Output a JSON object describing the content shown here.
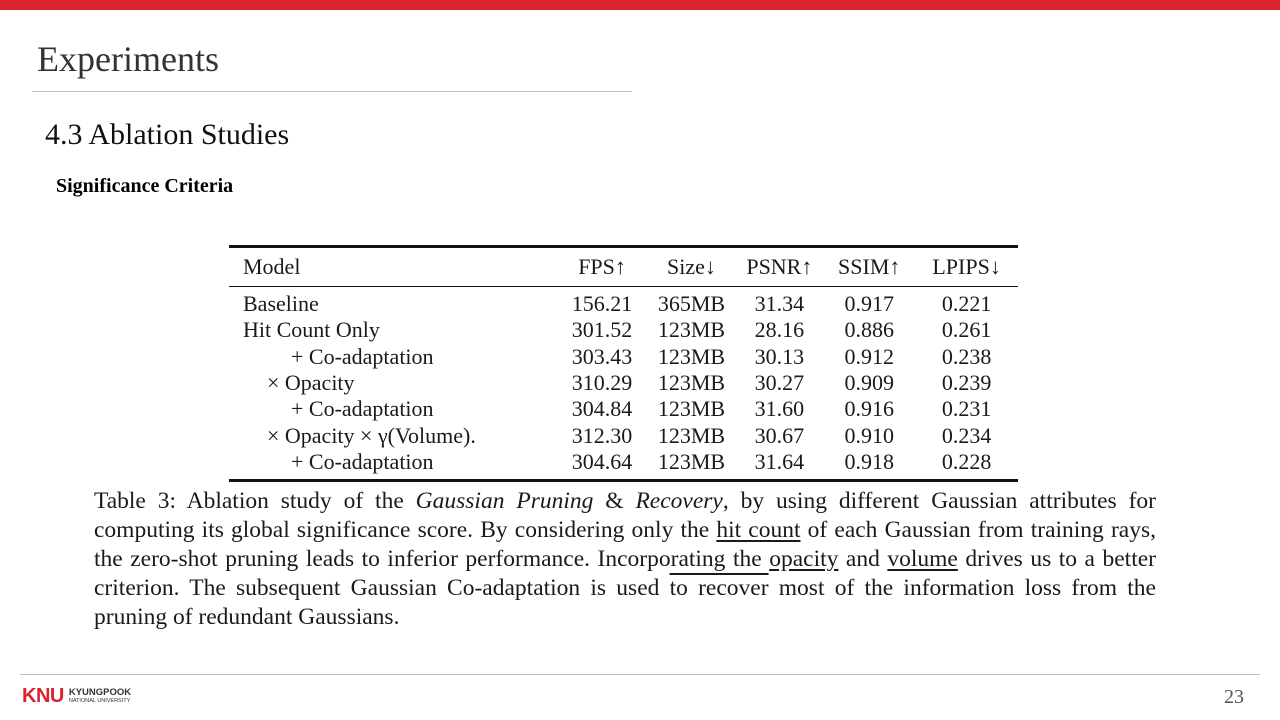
{
  "slide": {
    "title": "Experiments",
    "section": "4.3 Ablation Studies",
    "subheading": "Significance Criteria",
    "page_number": "23"
  },
  "table": {
    "headers": [
      "Model",
      "FPS↑",
      "Size↓",
      "PSNR↑",
      "SSIM↑",
      "LPIPS↓"
    ],
    "rows": [
      [
        "Baseline",
        "156.21",
        "365MB",
        "31.34",
        "0.917",
        "0.221"
      ],
      [
        "Hit Count Only",
        "301.52",
        "123MB",
        "28.16",
        "0.886",
        "0.261"
      ],
      [
        "+ Co-adaptation",
        "303.43",
        "123MB",
        "30.13",
        "0.912",
        "0.238"
      ],
      [
        "× Opacity",
        "310.29",
        "123MB",
        "30.27",
        "0.909",
        "0.239"
      ],
      [
        "+ Co-adaptation",
        "304.84",
        "123MB",
        "31.60",
        "0.916",
        "0.231"
      ],
      [
        "× Opacity × γ(Volume).",
        "312.30",
        "123MB",
        "30.67",
        "0.910",
        "0.234"
      ],
      [
        "+ Co-adaptation",
        "304.64",
        "123MB",
        "31.64",
        "0.918",
        "0.228"
      ]
    ]
  },
  "caption": {
    "p1": "Table 3: Ablation study of the ",
    "p2": "Gaussian Pruning",
    "p3": " & ",
    "p4": "Recovery",
    "p5": ", by using different Gaussian attributes for computing its global significance score. By considering only the ",
    "p6": "hit count",
    "p7": " of each Gaussian from training rays, the zero-shot pruning leads to inferior performance. Incorporating the ",
    "p8": "opacity",
    "p9": " and ",
    "p10": "volume",
    "p11": " drives us to a better criterion. The subsequent Gaussian Co-adaptation is used ",
    "p12": "to recover",
    "p13": " most of the information loss from the pruning of redundant Gaussians."
  },
  "footer": {
    "logo_mark": "KNU",
    "logo_line1": "KYUNGPOOK",
    "logo_line2": "NATIONAL UNIVERSITY"
  },
  "colors": {
    "accent": "#d9232e",
    "rule": "#bdbdbd"
  }
}
